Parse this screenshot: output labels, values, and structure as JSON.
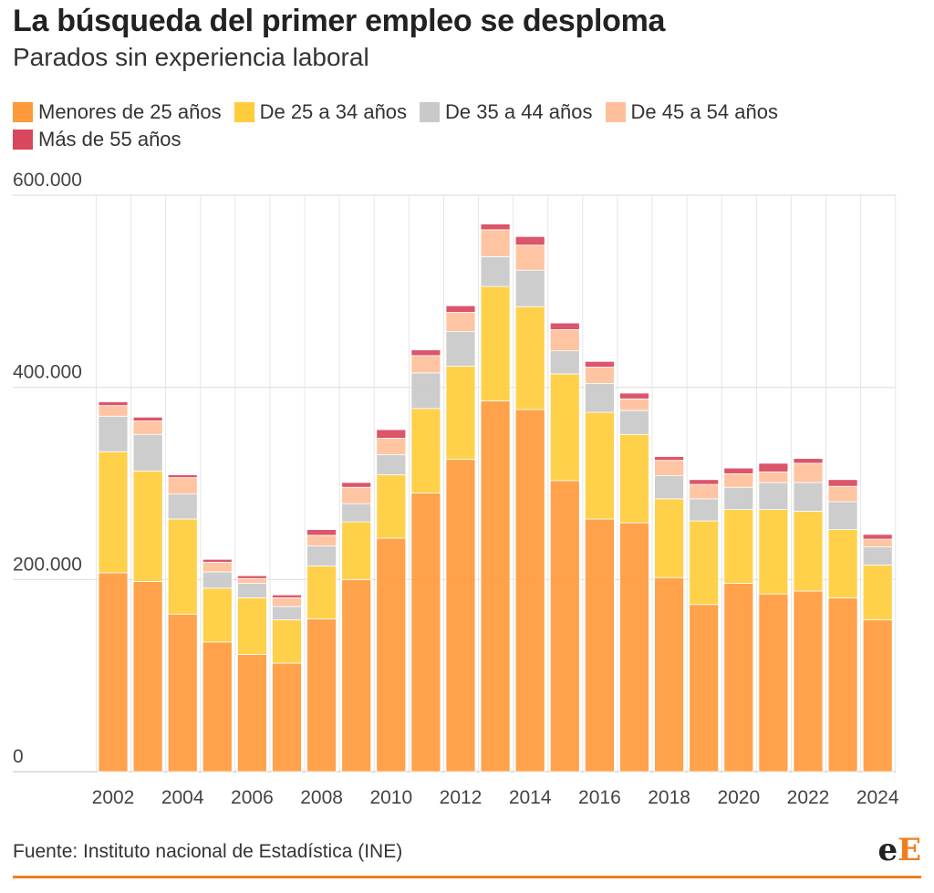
{
  "header": {
    "title": "La búsqueda del primer empleo se desploma",
    "subtitle": "Parados sin experiencia laboral"
  },
  "footer": {
    "source": "Fuente: Instituto nacional de Estadística (INE)",
    "logo_part1": "e",
    "logo_part2": "E"
  },
  "chart_data": {
    "type": "bar",
    "stacked": true,
    "categories": [
      "2002",
      "2003",
      "2004",
      "2005",
      "2006",
      "2007",
      "2008",
      "2009",
      "2010",
      "2011",
      "2012",
      "2013",
      "2014",
      "2015",
      "2016",
      "2017",
      "2018",
      "2019",
      "2020",
      "2021",
      "2022",
      "2023",
      "2024"
    ],
    "x_tick_labels": [
      "2002",
      "2004",
      "2006",
      "2008",
      "2010",
      "2012",
      "2014",
      "2016",
      "2018",
      "2020",
      "2022",
      "2024"
    ],
    "y_ticks": [
      0,
      200000,
      400000,
      600000
    ],
    "y_tick_labels": [
      "0",
      "200.000",
      "400.000",
      "600.000"
    ],
    "ylim": [
      0,
      600000
    ],
    "grid": true,
    "legend_position": "top",
    "series": [
      {
        "name": "Menores de 25 años",
        "color": "#ff9a3c",
        "values": [
          207000,
          198000,
          164000,
          135000,
          122000,
          113000,
          159000,
          200000,
          243000,
          290000,
          325000,
          386000,
          377000,
          303000,
          263000,
          259000,
          202000,
          174000,
          196000,
          185000,
          188000,
          181000,
          158000
        ]
      },
      {
        "name": "De 25 a 34 años",
        "color": "#ffcd3b",
        "values": [
          126000,
          115000,
          99000,
          56000,
          59000,
          45000,
          55000,
          60000,
          66000,
          88000,
          97000,
          119000,
          107000,
          111000,
          111000,
          92000,
          82000,
          87000,
          77000,
          88000,
          83000,
          71000,
          57000
        ]
      },
      {
        "name": "De 35 a 44 años",
        "color": "#c9c9c9",
        "values": [
          37000,
          38000,
          26000,
          17000,
          15000,
          14000,
          21000,
          19000,
          21000,
          37000,
          36000,
          31000,
          38000,
          24000,
          30000,
          25000,
          24000,
          23000,
          23000,
          28000,
          30000,
          29000,
          19000
        ]
      },
      {
        "name": "De 45 a 54 años",
        "color": "#ffbf9a",
        "values": [
          11000,
          14000,
          17000,
          10000,
          5000,
          9000,
          11000,
          17000,
          17000,
          18000,
          20000,
          28000,
          26000,
          22000,
          17000,
          12000,
          16000,
          15000,
          14000,
          11000,
          20000,
          16000,
          8000
        ]
      },
      {
        "name": "Más de 55 años",
        "color": "#d9475d",
        "values": [
          4000,
          4000,
          3000,
          3000,
          3000,
          3000,
          6000,
          5000,
          9000,
          6000,
          7000,
          6000,
          9000,
          7000,
          6000,
          6000,
          4000,
          5000,
          6000,
          9000,
          5000,
          7000,
          5000
        ]
      }
    ]
  }
}
